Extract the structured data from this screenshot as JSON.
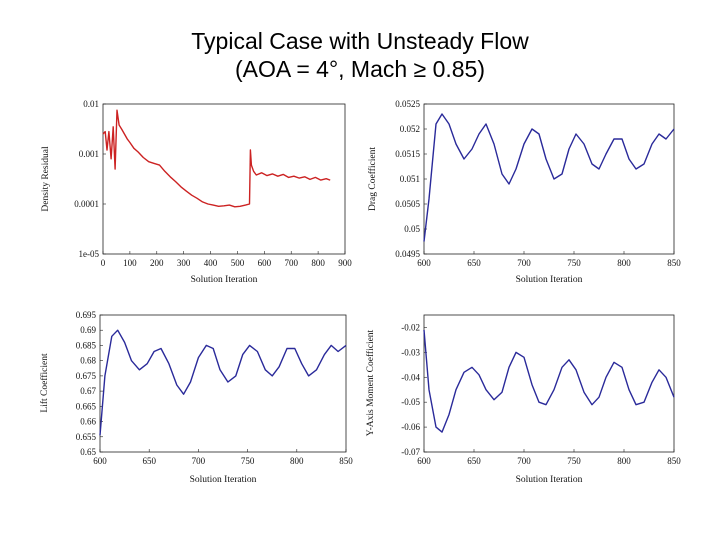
{
  "slide": {
    "title_line1": "Typical Case with Unsteady Flow",
    "title_line2": "(AOA = 4°, Mach ≥ 0.85)"
  },
  "chart_data": [
    {
      "type": "line",
      "xlabel": "Solution Iteration",
      "ylabel": "Density Residual",
      "yscale": "log",
      "xlim": [
        0,
        900
      ],
      "ylim": [
        1e-05,
        0.01
      ],
      "xticks": [
        0,
        100,
        200,
        300,
        400,
        500,
        600,
        700,
        800,
        900
      ],
      "yticks": [
        0.01,
        0.001,
        0.0001,
        1e-05
      ],
      "ytick_labels": [
        "0.01",
        "0.001",
        "0.0001",
        "1e-05"
      ],
      "color": "#cc2222",
      "x": [
        0,
        8,
        15,
        22,
        30,
        38,
        45,
        52,
        60,
        70,
        80,
        90,
        100,
        115,
        130,
        150,
        170,
        190,
        210,
        230,
        250,
        270,
        290,
        310,
        330,
        350,
        370,
        390,
        410,
        430,
        450,
        470,
        490,
        510,
        530,
        545,
        548,
        552,
        560,
        570,
        590,
        610,
        630,
        650,
        670,
        690,
        710,
        730,
        750,
        770,
        790,
        810,
        830,
        845
      ],
      "y": [
        0.0025,
        0.0028,
        0.0012,
        0.0028,
        0.0008,
        0.0035,
        0.0005,
        0.0075,
        0.0038,
        0.0031,
        0.0025,
        0.002,
        0.0017,
        0.0013,
        0.0011,
        0.00085,
        0.0007,
        0.00065,
        0.0006,
        0.00045,
        0.00035,
        0.00028,
        0.00022,
        0.00018,
        0.00015,
        0.00013,
        0.00011,
        0.0001,
        9.5e-05,
        9e-05,
        9.2e-05,
        9.5e-05,
        8.8e-05,
        9e-05,
        9.5e-05,
        0.0001,
        0.0012,
        0.0006,
        0.00045,
        0.00038,
        0.00042,
        0.00037,
        0.0004,
        0.00036,
        0.00039,
        0.00034,
        0.00036,
        0.00033,
        0.00035,
        0.00031,
        0.00034,
        0.0003,
        0.00032,
        0.0003
      ]
    },
    {
      "type": "line",
      "xlabel": "Solution Iteration",
      "ylabel": "Drag Coefficient",
      "xlim": [
        600,
        850
      ],
      "ylim": [
        0.0495,
        0.0525
      ],
      "xticks": [
        600,
        650,
        700,
        750,
        800,
        850
      ],
      "yticks": [
        0.0495,
        0.05,
        0.0505,
        0.051,
        0.0515,
        0.052,
        0.0525
      ],
      "ytick_labels": [
        "0.0495",
        "0.05",
        "0.0505",
        "0.051",
        "0.0515",
        "0.052",
        "0.0525"
      ],
      "color": "#2a2a9a",
      "x": [
        600,
        605,
        612,
        618,
        625,
        632,
        640,
        648,
        655,
        662,
        670,
        678,
        685,
        692,
        700,
        708,
        715,
        722,
        730,
        738,
        745,
        752,
        760,
        768,
        775,
        782,
        790,
        798,
        805,
        812,
        820,
        828,
        835,
        842,
        850
      ],
      "y": [
        0.04975,
        0.0506,
        0.0521,
        0.0523,
        0.0521,
        0.0517,
        0.0514,
        0.0516,
        0.0519,
        0.0521,
        0.0517,
        0.0511,
        0.0509,
        0.0512,
        0.0517,
        0.052,
        0.0519,
        0.0514,
        0.051,
        0.0511,
        0.0516,
        0.0519,
        0.0517,
        0.0513,
        0.0512,
        0.0515,
        0.0518,
        0.0518,
        0.0514,
        0.0512,
        0.0513,
        0.0517,
        0.0519,
        0.0518,
        0.052
      ]
    },
    {
      "type": "line",
      "xlabel": "Solution Iteration",
      "ylabel": "Lift Coefficient",
      "xlim": [
        600,
        850
      ],
      "ylim": [
        0.65,
        0.695
      ],
      "xticks": [
        600,
        650,
        700,
        750,
        800,
        850
      ],
      "yticks": [
        0.65,
        0.655,
        0.66,
        0.665,
        0.67,
        0.675,
        0.68,
        0.685,
        0.69,
        0.695
      ],
      "ytick_labels": [
        "0.65",
        "0.655",
        "0.66",
        "0.665",
        "0.67",
        "0.675",
        "0.68",
        "0.685",
        "0.69",
        "0.695"
      ],
      "color": "#2a2a9a",
      "x": [
        600,
        605,
        612,
        618,
        625,
        632,
        640,
        648,
        655,
        662,
        670,
        678,
        685,
        692,
        700,
        708,
        715,
        722,
        730,
        738,
        745,
        752,
        760,
        768,
        775,
        782,
        790,
        798,
        805,
        812,
        820,
        828,
        835,
        842,
        850
      ],
      "y": [
        0.6555,
        0.675,
        0.688,
        0.69,
        0.686,
        0.68,
        0.677,
        0.679,
        0.683,
        0.684,
        0.679,
        0.672,
        0.669,
        0.673,
        0.681,
        0.685,
        0.684,
        0.677,
        0.673,
        0.675,
        0.682,
        0.685,
        0.683,
        0.677,
        0.675,
        0.678,
        0.684,
        0.684,
        0.679,
        0.675,
        0.677,
        0.682,
        0.685,
        0.683,
        0.685
      ]
    },
    {
      "type": "line",
      "xlabel": "Solution Iteration",
      "ylabel": "Y-Axis Moment Coefficient",
      "xlim": [
        600,
        850
      ],
      "ylim": [
        -0.07,
        -0.015
      ],
      "xticks": [
        600,
        650,
        700,
        750,
        800,
        850
      ],
      "yticks": [
        -0.07,
        -0.06,
        -0.05,
        -0.04,
        -0.03,
        -0.02
      ],
      "ytick_labels": [
        "-0.07",
        "-0.06",
        "-0.05",
        "-0.04",
        "-0.03",
        "-0.02"
      ],
      "color": "#2a2a9a",
      "x": [
        600,
        605,
        612,
        618,
        625,
        632,
        640,
        648,
        655,
        662,
        670,
        678,
        685,
        692,
        700,
        708,
        715,
        722,
        730,
        738,
        745,
        752,
        760,
        768,
        775,
        782,
        790,
        798,
        805,
        812,
        820,
        828,
        835,
        842,
        850
      ],
      "y": [
        -0.021,
        -0.045,
        -0.06,
        -0.062,
        -0.055,
        -0.045,
        -0.038,
        -0.036,
        -0.039,
        -0.045,
        -0.049,
        -0.046,
        -0.036,
        -0.03,
        -0.032,
        -0.043,
        -0.05,
        -0.051,
        -0.045,
        -0.036,
        -0.033,
        -0.037,
        -0.046,
        -0.051,
        -0.048,
        -0.04,
        -0.034,
        -0.036,
        -0.045,
        -0.051,
        -0.05,
        -0.042,
        -0.037,
        -0.04,
        -0.048
      ]
    }
  ]
}
